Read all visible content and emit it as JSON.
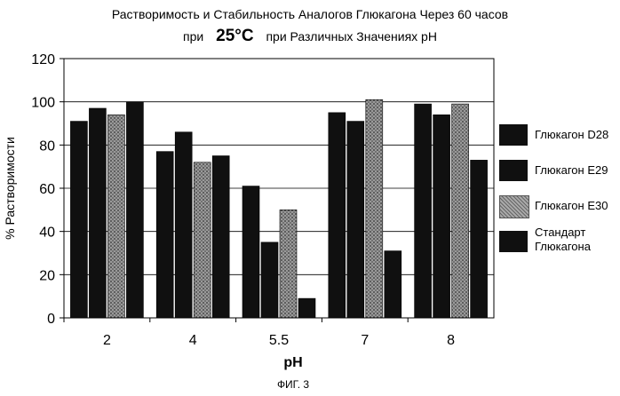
{
  "title_line1": "Растворимость и Стабильность Аналогов Глюкагона Через 60 часов",
  "title_line2_pre": "при",
  "title_line2_temp": "25°C",
  "title_line2_post": "при Различных Значениях pH",
  "figure_caption": "ФИГ. 3",
  "chart_data": {
    "type": "bar",
    "categories": [
      "2",
      "4",
      "5.5",
      "7",
      "8"
    ],
    "xlabel": "pH",
    "ylabel": "% Растворимости",
    "ylim": [
      0,
      120
    ],
    "yticks": [
      "0",
      "20",
      "40",
      "60",
      "80",
      "100",
      "120"
    ],
    "grid": "horizontal",
    "legend_position": "right",
    "series": [
      {
        "name": "Глюкагон D28",
        "values": [
          91,
          77,
          61,
          95,
          99
        ],
        "color": "#101010",
        "pattern": "solid"
      },
      {
        "name": "Глюкагон E29",
        "values": [
          97,
          86,
          35,
          91,
          94
        ],
        "color": "#101010",
        "pattern": "solid"
      },
      {
        "name": "Глюкагон E30",
        "values": [
          94,
          72,
          50,
          101,
          99
        ],
        "color": "#808080",
        "pattern": "dotted"
      },
      {
        "name": "Стандарт Глюкагона",
        "values": [
          100,
          75,
          9,
          31,
          73
        ],
        "color": "#101010",
        "pattern": "solid"
      }
    ]
  }
}
